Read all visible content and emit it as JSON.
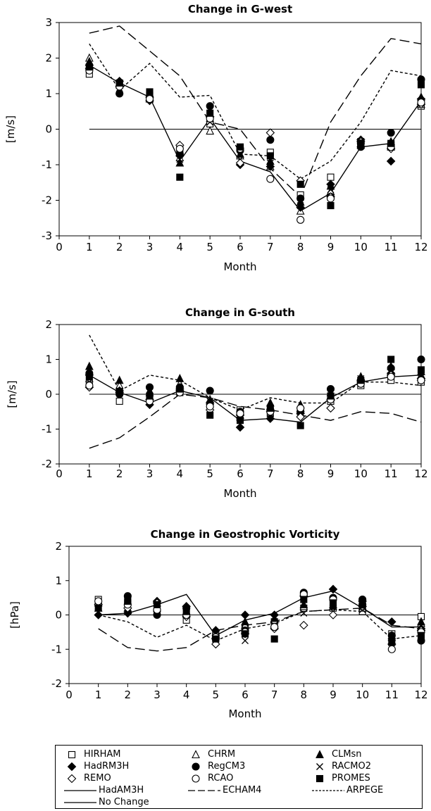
{
  "chart_data": [
    {
      "type": "scatter",
      "title": "Change in G-west",
      "xlabel": "Month",
      "ylabel": "[m/s]",
      "xlim": [
        0,
        12
      ],
      "ylim": [
        -3,
        3
      ],
      "xticks": [
        "0",
        "1",
        "2",
        "3",
        "4",
        "5",
        "6",
        "7",
        "8",
        "9",
        "10",
        "11",
        "12"
      ],
      "yticks": [
        "-3",
        "-2",
        "-1",
        "0",
        "1",
        "2",
        "3"
      ],
      "x": [
        1,
        2,
        3,
        4,
        5,
        6,
        7,
        8,
        9,
        10,
        11,
        12
      ],
      "lines": [
        {
          "name": "HadAM3H",
          "style": "solid",
          "values": [
            1.8,
            1.3,
            0.9,
            -0.9,
            0.3,
            -0.9,
            -1.2,
            -2.3,
            -1.8,
            -0.5,
            -0.4,
            0.8
          ]
        },
        {
          "name": "ECHAM4",
          "style": "long-dash",
          "values": [
            2.7,
            2.9,
            2.2,
            1.5,
            0.2,
            0.0,
            -1.1,
            -1.9,
            0.2,
            1.5,
            2.55,
            2.4
          ]
        },
        {
          "name": "ARPEGE",
          "style": "short-dash",
          "values": [
            2.4,
            1.1,
            1.85,
            0.9,
            0.95,
            -0.7,
            -0.75,
            -1.4,
            -0.9,
            0.2,
            1.65,
            1.5
          ]
        },
        {
          "name": "No Change",
          "style": "solid",
          "values": [
            0,
            0,
            0,
            0,
            0,
            0,
            0,
            0,
            0,
            0,
            0,
            0
          ]
        }
      ],
      "series": [
        {
          "name": "HIRHAM",
          "marker": "open-square",
          "values": [
            1.55,
            1.25,
            0.95,
            -0.55,
            0.15,
            -0.55,
            -0.65,
            -1.85,
            -1.35,
            -0.35,
            -0.45,
            0.65
          ]
        },
        {
          "name": "CHRM",
          "marker": "open-triangle",
          "values": [
            2.0,
            1.3,
            0.85,
            -0.8,
            -0.05,
            -0.75,
            -1.05,
            -2.3,
            -1.75,
            -0.45,
            -0.5,
            0.7
          ]
        },
        {
          "name": "CLMsn",
          "marker": "filled-triangle",
          "values": [
            1.9,
            1.25,
            0.9,
            -0.95,
            0.3,
            -0.7,
            -0.9,
            -2.05,
            -1.6,
            -0.4,
            -0.35,
            0.9
          ]
        },
        {
          "name": "HadRM3H",
          "marker": "filled-diamond",
          "values": [
            1.8,
            1.35,
            0.8,
            -0.75,
            0.35,
            -1.0,
            -1.05,
            -2.2,
            -1.55,
            -0.3,
            -0.9,
            0.85
          ]
        },
        {
          "name": "RegCM3",
          "marker": "filled-circle",
          "values": [
            1.7,
            1.0,
            0.9,
            -0.7,
            0.65,
            -0.6,
            -0.3,
            -1.95,
            -1.9,
            -0.5,
            -0.1,
            1.4
          ]
        },
        {
          "name": "RACMO2",
          "marker": "x",
          "values": [
            1.75,
            1.15,
            0.95,
            -0.85,
            0.2,
            -0.85,
            -0.95,
            -2.15,
            -1.7,
            -0.45,
            -0.45,
            0.75
          ]
        },
        {
          "name": "REMO",
          "marker": "open-diamond",
          "values": [
            1.7,
            1.2,
            0.9,
            -0.45,
            0.35,
            -0.95,
            -0.1,
            -1.45,
            -1.9,
            -0.35,
            -0.55,
            0.7
          ]
        },
        {
          "name": "RCAO",
          "marker": "open-circle",
          "values": [
            1.65,
            1.2,
            0.85,
            -0.55,
            0.3,
            -0.55,
            -1.4,
            -2.55,
            -1.95,
            -0.4,
            -0.5,
            0.75
          ]
        },
        {
          "name": "PROMES",
          "marker": "filled-square",
          "values": [
            1.75,
            1.3,
            1.05,
            -1.35,
            0.45,
            -0.5,
            -0.75,
            -1.55,
            -2.15,
            -0.4,
            -0.4,
            1.25
          ]
        }
      ],
      "grid": false
    },
    {
      "type": "scatter",
      "title": "Change in G-south",
      "xlabel": "Month",
      "ylabel": "[m/s]",
      "xlim": [
        0,
        12
      ],
      "ylim": [
        -2,
        2
      ],
      "xticks": [
        "0",
        "1",
        "2",
        "3",
        "4",
        "5",
        "6",
        "7",
        "8",
        "9",
        "10",
        "11",
        "12"
      ],
      "yticks": [
        "-2",
        "-1",
        "0",
        "1",
        "2"
      ],
      "x": [
        1,
        2,
        3,
        4,
        5,
        6,
        7,
        8,
        9,
        10,
        11,
        12
      ],
      "lines": [
        {
          "name": "HadAM3H",
          "style": "solid",
          "values": [
            0.55,
            0.05,
            -0.25,
            0.1,
            -0.1,
            -0.75,
            -0.7,
            -0.8,
            -0.1,
            0.35,
            0.5,
            0.55
          ]
        },
        {
          "name": "ECHAM4",
          "style": "long-dash",
          "values": [
            -1.55,
            -1.25,
            -0.65,
            0.0,
            -0.1,
            -0.35,
            -0.45,
            -0.6,
            -0.75,
            -0.5,
            -0.55,
            -0.8
          ]
        },
        {
          "name": "ARPEGE",
          "style": "short-dash",
          "values": [
            1.7,
            0.1,
            0.55,
            0.4,
            -0.1,
            -0.45,
            -0.1,
            -0.25,
            -0.25,
            0.35,
            0.35,
            0.25
          ]
        },
        {
          "name": "No Change",
          "style": "solid",
          "values": [
            0,
            0,
            0,
            0,
            0,
            0,
            0,
            0,
            0,
            0,
            0,
            0
          ]
        }
      ],
      "series": [
        {
          "name": "HIRHAM",
          "marker": "open-square",
          "values": [
            0.3,
            -0.2,
            -0.15,
            0.05,
            -0.3,
            -0.45,
            -0.55,
            -0.45,
            -0.2,
            0.25,
            0.4,
            0.35
          ]
        },
        {
          "name": "CHRM",
          "marker": "open-triangle",
          "values": [
            0.45,
            0.25,
            0.05,
            0.3,
            -0.15,
            -0.65,
            -0.35,
            -0.4,
            -0.05,
            0.5,
            0.6,
            0.55
          ]
        },
        {
          "name": "CLMsn",
          "marker": "filled-triangle",
          "values": [
            0.8,
            0.4,
            0.1,
            0.45,
            -0.2,
            -0.6,
            -0.25,
            -0.3,
            0.05,
            0.5,
            0.8,
            0.65
          ]
        },
        {
          "name": "HadRM3H",
          "marker": "filled-diamond",
          "values": [
            0.55,
            0.1,
            -0.3,
            0.15,
            -0.25,
            -0.95,
            -0.7,
            -0.55,
            -0.15,
            0.4,
            0.6,
            0.45
          ]
        },
        {
          "name": "RegCM3",
          "marker": "filled-circle",
          "values": [
            0.6,
            0.0,
            0.2,
            0.2,
            0.1,
            -0.5,
            -0.45,
            -0.5,
            0.15,
            0.4,
            0.75,
            1.0
          ]
        },
        {
          "name": "RACMO2",
          "marker": "x",
          "values": [
            0.35,
            0.1,
            -0.1,
            0.1,
            -0.2,
            -0.7,
            -0.55,
            -0.45,
            -0.05,
            0.45,
            0.65,
            0.5
          ]
        },
        {
          "name": "REMO",
          "marker": "open-diamond",
          "values": [
            0.2,
            0.05,
            -0.15,
            0.1,
            -0.45,
            -0.6,
            -0.5,
            -0.65,
            -0.4,
            0.35,
            0.55,
            0.4
          ]
        },
        {
          "name": "RCAO",
          "marker": "open-circle",
          "values": [
            0.25,
            0.05,
            -0.2,
            0.05,
            -0.35,
            -0.55,
            -0.5,
            -0.4,
            -0.15,
            0.3,
            0.5,
            0.4
          ]
        },
        {
          "name": "PROMES",
          "marker": "filled-square",
          "values": [
            0.5,
            0.05,
            -0.05,
            0.15,
            -0.6,
            -0.75,
            -0.4,
            -0.9,
            -0.05,
            0.4,
            1.0,
            0.7
          ]
        }
      ],
      "grid": false
    },
    {
      "type": "scatter",
      "title": "Change in Geostrophic Vorticity",
      "xlabel": "Month",
      "ylabel": "[hPa]",
      "xlim": [
        0,
        12
      ],
      "ylim": [
        -2,
        2
      ],
      "xticks": [
        "0",
        "1",
        "2",
        "3",
        "4",
        "5",
        "6",
        "7",
        "8",
        "9",
        "10",
        "11",
        "12"
      ],
      "yticks": [
        "-2",
        "-1",
        "0",
        "1",
        "2"
      ],
      "x": [
        1,
        2,
        3,
        4,
        5,
        6,
        7,
        8,
        9,
        10,
        11,
        12
      ],
      "lines": [
        {
          "name": "HadAM3H",
          "style": "solid",
          "values": [
            0.0,
            0.05,
            0.3,
            0.6,
            -0.6,
            -0.15,
            0.05,
            0.5,
            0.7,
            0.2,
            -0.35,
            -0.35
          ]
        },
        {
          "name": "ECHAM4",
          "style": "long-dash",
          "values": [
            -0.4,
            -0.95,
            -1.05,
            -0.95,
            -0.45,
            -0.3,
            -0.2,
            0.1,
            0.15,
            0.2,
            -0.3,
            -0.4
          ]
        },
        {
          "name": "ARPEGE",
          "style": "short-dash",
          "values": [
            0.0,
            -0.2,
            -0.65,
            -0.3,
            -0.75,
            -0.4,
            -0.25,
            0.1,
            0.15,
            0.1,
            -0.7,
            -0.6
          ]
        },
        {
          "name": "No Change",
          "style": "solid",
          "values": [
            0,
            0,
            0,
            0,
            0,
            0,
            0,
            0,
            0,
            0,
            0,
            0
          ]
        }
      ],
      "series": [
        {
          "name": "HIRHAM",
          "marker": "open-square",
          "values": [
            0.45,
            0.35,
            0.1,
            -0.15,
            -0.55,
            -0.4,
            -0.2,
            0.2,
            0.2,
            0.1,
            -0.55,
            -0.05
          ]
        },
        {
          "name": "CHRM",
          "marker": "open-triangle",
          "values": [
            0.35,
            0.2,
            0.2,
            0.05,
            -0.5,
            -0.3,
            -0.15,
            0.25,
            0.3,
            0.2,
            -0.6,
            -0.25
          ]
        },
        {
          "name": "CLMsn",
          "marker": "filled-triangle",
          "values": [
            0.2,
            0.15,
            0.35,
            0.1,
            -0.6,
            -0.2,
            -0.1,
            0.3,
            0.25,
            0.25,
            -0.65,
            -0.2
          ]
        },
        {
          "name": "HadRM3H",
          "marker": "filled-diamond",
          "values": [
            0.0,
            0.05,
            0.4,
            0.25,
            -0.45,
            0.0,
            0.0,
            0.55,
            0.75,
            0.4,
            -0.2,
            -0.4
          ]
        },
        {
          "name": "RegCM3",
          "marker": "filled-circle",
          "values": [
            0.3,
            0.55,
            0.0,
            0.2,
            -0.7,
            -0.45,
            -0.35,
            0.65,
            0.5,
            0.45,
            -0.6,
            -0.75
          ]
        },
        {
          "name": "RACMO2",
          "marker": "x",
          "values": [
            0.25,
            0.3,
            0.25,
            0.05,
            -0.75,
            -0.75,
            -0.3,
            0.05,
            0.1,
            0.15,
            -0.8,
            -0.55
          ]
        },
        {
          "name": "REMO",
          "marker": "open-diamond",
          "values": [
            0.3,
            0.2,
            0.35,
            -0.05,
            -0.85,
            -0.55,
            -0.4,
            -0.3,
            0.0,
            0.25,
            -0.85,
            -0.45
          ]
        },
        {
          "name": "RCAO",
          "marker": "open-circle",
          "values": [
            0.4,
            0.3,
            0.15,
            0.0,
            -0.65,
            -0.5,
            -0.35,
            0.6,
            0.45,
            0.3,
            -1.0,
            -0.5
          ]
        },
        {
          "name": "PROMES",
          "marker": "filled-square",
          "values": [
            0.2,
            0.4,
            0.3,
            0.1,
            -0.7,
            -0.55,
            -0.7,
            0.45,
            0.35,
            0.3,
            -0.8,
            -0.6
          ]
        }
      ],
      "grid": false
    }
  ],
  "legend": {
    "items": [
      {
        "label": "HIRHAM",
        "marker": "open-square"
      },
      {
        "label": "CHRM",
        "marker": "open-triangle"
      },
      {
        "label": "CLMsn",
        "marker": "filled-triangle"
      },
      {
        "label": "HadRM3H",
        "marker": "filled-diamond"
      },
      {
        "label": "RegCM3",
        "marker": "filled-circle"
      },
      {
        "label": "RACMO2",
        "marker": "x"
      },
      {
        "label": "REMO",
        "marker": "open-diamond"
      },
      {
        "label": "RCAO",
        "marker": "open-circle"
      },
      {
        "label": "PROMES",
        "marker": "filled-square"
      },
      {
        "label": "HadAM3H",
        "marker": "solid-line"
      },
      {
        "label": "ECHAM4",
        "marker": "long-dash-line"
      },
      {
        "label": "ARPEGE",
        "marker": "short-dash-line"
      },
      {
        "label": "No Change",
        "marker": "solid-line"
      }
    ]
  },
  "colors": {
    "ink": "#000000",
    "background": "#ffffff"
  }
}
